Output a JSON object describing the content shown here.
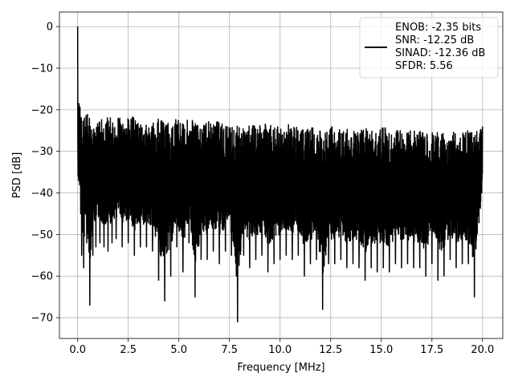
{
  "chart_data": {
    "type": "line",
    "title": "",
    "xlabel": "Frequency [MHz]",
    "ylabel": "PSD [dB]",
    "xlim": [
      -0.9,
      21.0
    ],
    "ylim": [
      -75,
      3.5
    ],
    "xticks": [
      0.0,
      2.5,
      5.0,
      7.5,
      10.0,
      12.5,
      15.0,
      17.5,
      20.0
    ],
    "xtick_labels": [
      "0.0",
      "2.5",
      "5.0",
      "7.5",
      "10.0",
      "12.5",
      "15.0",
      "17.5",
      "20.0"
    ],
    "yticks": [
      0,
      -10,
      -20,
      -30,
      -40,
      -50,
      -60,
      -70
    ],
    "ytick_labels": [
      "0",
      "−10",
      "−20",
      "−30",
      "−40",
      "−50",
      "−60",
      "−70"
    ],
    "grid": true,
    "legend_position": "top-right",
    "series_color": "#000000",
    "series": [
      {
        "legend_lines": [
          "ENOB: -2.35 bits",
          "SNR: -12.25 dB",
          "SINAD: -12.36 dB",
          "SFDR: 5.56"
        ],
        "x": [
          0.0,
          0.02,
          0.05,
          0.1,
          0.15,
          0.2,
          0.3,
          0.45,
          0.6,
          0.75,
          0.9,
          1.1,
          1.3,
          1.5,
          1.7,
          1.9,
          2.2,
          2.5,
          2.8,
          3.1,
          3.4,
          3.7,
          4.0,
          4.3,
          4.6,
          4.9,
          5.2,
          5.5,
          5.8,
          6.1,
          6.4,
          6.7,
          7.0,
          7.3,
          7.6,
          7.9,
          8.2,
          8.5,
          8.8,
          9.1,
          9.4,
          9.7,
          10.0,
          10.3,
          10.6,
          10.9,
          11.2,
          11.5,
          11.8,
          12.1,
          12.4,
          12.7,
          13.0,
          13.3,
          13.6,
          13.9,
          14.2,
          14.5,
          14.8,
          15.1,
          15.4,
          15.7,
          16.0,
          16.3,
          16.6,
          16.9,
          17.2,
          17.5,
          17.8,
          18.1,
          18.4,
          18.7,
          19.0,
          19.3,
          19.6,
          20.0
        ],
        "upper": [
          0,
          -13,
          -16,
          -18,
          -20,
          -21,
          -22,
          -21,
          -21,
          -22,
          -21,
          -22,
          -22,
          -21,
          -22,
          -21,
          -22,
          -21,
          -22,
          -22,
          -22,
          -22,
          -22,
          -23,
          -23,
          -22,
          -23,
          -22,
          -23,
          -23,
          -23,
          -22,
          -23,
          -23,
          -24,
          -23,
          -23,
          -24,
          -23,
          -24,
          -23,
          -24,
          -24,
          -23,
          -24,
          -24,
          -24,
          -24,
          -25,
          -24,
          -24,
          -24,
          -25,
          -24,
          -25,
          -25,
          -24,
          -25,
          -25,
          -24,
          -25,
          -25,
          -25,
          -25,
          -25,
          -25,
          -25,
          -25,
          -25,
          -25,
          -25,
          -25,
          -25,
          -25,
          -25,
          -24
        ],
        "lower": [
          -33,
          -36,
          -37,
          -38,
          -45,
          -55,
          -58,
          -52,
          -67,
          -55,
          -53,
          -52,
          -53,
          -54,
          -52,
          -51,
          -53,
          -52,
          -55,
          -53,
          -53,
          -54,
          -61,
          -66,
          -60,
          -53,
          -59,
          -52,
          -65,
          -56,
          -56,
          -54,
          -57,
          -54,
          -55,
          -71,
          -55,
          -58,
          -56,
          -55,
          -59,
          -57,
          -56,
          -55,
          -56,
          -55,
          -60,
          -57,
          -56,
          -68,
          -57,
          -57,
          -56,
          -58,
          -57,
          -58,
          -61,
          -58,
          -59,
          -58,
          -59,
          -57,
          -58,
          -57,
          -58,
          -58,
          -60,
          -57,
          -61,
          -60,
          -56,
          -58,
          -57,
          -57,
          -65,
          -42
        ]
      }
    ]
  }
}
